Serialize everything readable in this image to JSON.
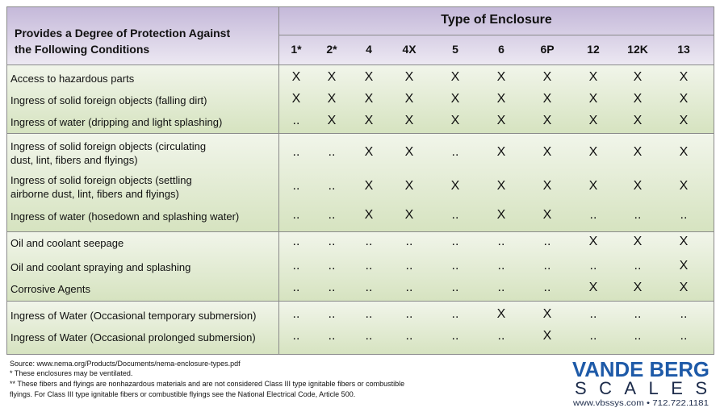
{
  "header": {
    "title_lines": [
      "Provides a Degree of Protection Against",
      "the Following Conditions"
    ],
    "group_title": "Type of Enclosure",
    "columns": [
      "1*",
      "2*",
      "4",
      "4X",
      "5",
      "6",
      "6P",
      "12",
      "12K",
      "13"
    ]
  },
  "groups": [
    {
      "rows": [
        {
          "label_lines": [
            "Access to hazardous parts"
          ],
          "cells": [
            "X",
            "X",
            "X",
            "X",
            "X",
            "X",
            "X",
            "X",
            "X",
            "X"
          ]
        },
        {
          "label_lines": [
            "Ingress of solid foreign objects (falling dirt)"
          ],
          "cells": [
            "X",
            "X",
            "X",
            "X",
            "X",
            "X",
            "X",
            "X",
            "X",
            "X"
          ]
        },
        {
          "label_lines": [
            "Ingress of water (dripping and light splashing)"
          ],
          "cells": [
            "..",
            "X",
            "X",
            "X",
            "X",
            "X",
            "X",
            "X",
            "X",
            "X"
          ]
        }
      ]
    },
    {
      "rows": [
        {
          "label_lines": [
            "Ingress of solid foreign objects (circulating",
            "dust, lint, fibers and flyings)"
          ],
          "cells": [
            "..",
            "..",
            "X",
            "X",
            "..",
            "X",
            "X",
            "X",
            "X",
            "X"
          ]
        },
        {
          "label_lines": [
            "Ingress of solid foreign objects (settling",
            "airborne dust, lint, fibers and flyings)"
          ],
          "cells": [
            "..",
            "..",
            "X",
            "X",
            "X",
            "X",
            "X",
            "X",
            "X",
            "X"
          ]
        },
        {
          "label_lines": [
            "Ingress of water (hosedown and splashing water)"
          ],
          "cells": [
            "..",
            "..",
            "X",
            "X",
            "..",
            "X",
            "X",
            "..",
            "..",
            ".."
          ]
        }
      ]
    },
    {
      "rows": [
        {
          "label_lines": [
            "Oil and coolant seepage"
          ],
          "cells": [
            "..",
            "..",
            "..",
            "..",
            "..",
            "..",
            "..",
            "X",
            "X",
            "X"
          ]
        },
        {
          "label_lines": [
            "Oil and coolant spraying and splashing"
          ],
          "cells": [
            "..",
            "..",
            "..",
            "..",
            "..",
            "..",
            "..",
            "..",
            "..",
            "X"
          ]
        },
        {
          "label_lines": [
            "Corrosive Agents"
          ],
          "cells": [
            "..",
            "..",
            "..",
            "..",
            "..",
            "..",
            "..",
            "X",
            "X",
            "X"
          ]
        }
      ]
    },
    {
      "rows": [
        {
          "label_lines": [
            "Ingress of Water (Occasional temporary submersion)"
          ],
          "cells": [
            "..",
            "..",
            "..",
            "..",
            "..",
            "X",
            "X",
            "..",
            "..",
            ".."
          ]
        },
        {
          "label_lines": [
            "Ingress of Water (Occasional prolonged submersion)"
          ],
          "cells": [
            "..",
            "..",
            "..",
            "..",
            "..",
            "..",
            "X",
            "..",
            "..",
            ".."
          ]
        }
      ]
    }
  ],
  "footer": {
    "notes": [
      "Source: www.nema.org/Products/Documents/nema-enclosure-types.pdf",
      "* These enclosures may be ventilated.",
      "** These fibers and flyings are nonhazardous materials and are not considered Class III type ignitable fibers or combustible",
      "flyings. For Class III type ignitable fibers or combustible flyings see the National Electrical Code, Article 500."
    ]
  },
  "logo": {
    "name": "VANDE BERG",
    "subname": "SCALES",
    "contact": "www.vbssys.com • 712.722.1181"
  }
}
